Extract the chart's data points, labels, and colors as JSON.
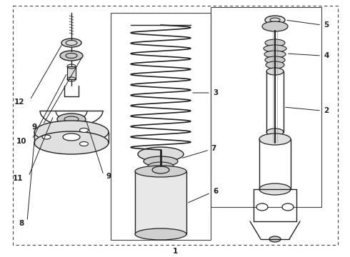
{
  "bg_color": "#ffffff",
  "line_color": "#222222",
  "fig_w": 4.9,
  "fig_h": 3.6,
  "dpi": 100
}
